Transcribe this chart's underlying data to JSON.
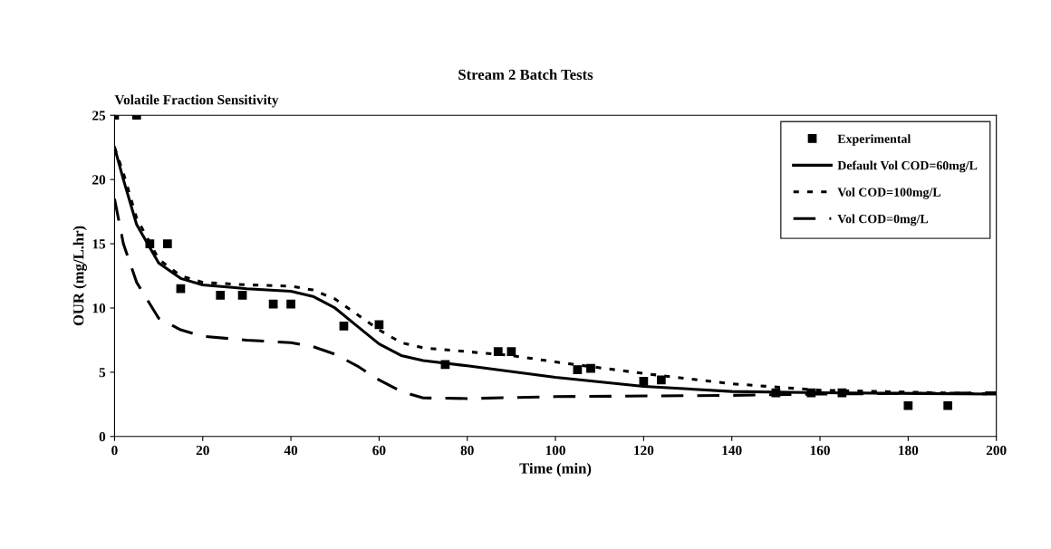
{
  "chart_data": {
    "type": "line",
    "title": "Stream 2 Batch Tests",
    "subtitle": "Volatile Fraction Sensitivity",
    "xlabel": "Time (min)",
    "ylabel": "OUR (mg/L.hr)",
    "xlim": [
      0,
      200
    ],
    "xticks": [
      0,
      20,
      40,
      60,
      80,
      100,
      120,
      140,
      160,
      180,
      200
    ],
    "ylim": [
      0,
      25
    ],
    "yticks": [
      0,
      5,
      10,
      15,
      20,
      25
    ],
    "grid": false,
    "legend": "top right",
    "series": [
      {
        "name": "Experimental",
        "type": "scatter",
        "marker": "square",
        "color": "#000000",
        "x": [
          0,
          5,
          8,
          12,
          15,
          24,
          29,
          36,
          40,
          52,
          60,
          75,
          87,
          90,
          105,
          108,
          120,
          124,
          150,
          158,
          165,
          180,
          189
        ],
        "values": [
          25,
          25,
          15,
          15,
          11.5,
          11,
          11,
          10.3,
          10.3,
          8.6,
          8.7,
          5.6,
          6.6,
          6.6,
          5.2,
          5.3,
          4.3,
          4.4,
          3.4,
          3.4,
          3.4,
          2.4,
          2.4
        ]
      },
      {
        "name": "Default Vol COD=60mg/L",
        "line_style": "solid",
        "color": "#000000",
        "x": [
          0,
          2,
          5,
          10,
          15,
          20,
          30,
          40,
          45,
          50,
          55,
          60,
          65,
          70,
          80,
          100,
          120,
          140,
          160,
          200
        ],
        "values": [
          22.5,
          20,
          16.5,
          13.5,
          12.3,
          11.8,
          11.5,
          11.3,
          10.9,
          10.0,
          8.6,
          7.2,
          6.3,
          5.9,
          5.5,
          4.6,
          3.9,
          3.5,
          3.4,
          3.3
        ]
      },
      {
        "name": "Vol COD=100mg/L",
        "line_style": "dotted",
        "color": "#000000",
        "x": [
          0,
          2,
          5,
          10,
          15,
          20,
          30,
          40,
          45,
          50,
          55,
          60,
          65,
          70,
          80,
          90,
          100,
          120,
          140,
          160,
          200
        ],
        "values": [
          22.5,
          20.5,
          17,
          13.8,
          12.5,
          12,
          11.8,
          11.7,
          11.4,
          10.7,
          9.5,
          8.3,
          7.3,
          6.9,
          6.6,
          6.3,
          5.8,
          4.9,
          4.1,
          3.6,
          3.3
        ]
      },
      {
        "name": "Vol COD=0mg/L",
        "line_style": "dashed",
        "color": "#000000",
        "x": [
          0,
          2,
          5,
          10,
          15,
          20,
          30,
          40,
          45,
          50,
          55,
          60,
          65,
          70,
          80,
          100,
          140,
          160,
          200
        ],
        "values": [
          18.5,
          15,
          12,
          9.2,
          8.3,
          7.8,
          7.5,
          7.3,
          7.0,
          6.4,
          5.5,
          4.4,
          3.5,
          3.0,
          2.95,
          3.1,
          3.2,
          3.3,
          3.4
        ]
      }
    ]
  }
}
